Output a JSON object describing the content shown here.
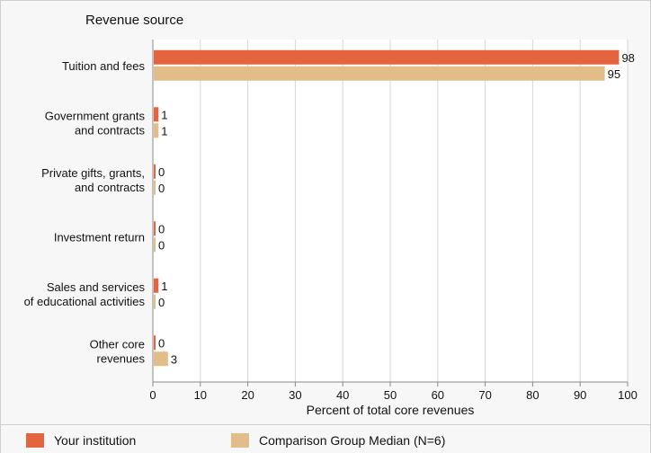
{
  "chart_data": {
    "type": "bar",
    "orientation": "horizontal",
    "title": "Revenue source",
    "xlabel": "Percent of total core revenues",
    "xlim": [
      0,
      100
    ],
    "xticks": [
      0,
      10,
      20,
      30,
      40,
      50,
      60,
      70,
      80,
      90,
      100
    ],
    "categories": [
      [
        "Tuition and fees"
      ],
      [
        "Government grants",
        "and contracts"
      ],
      [
        "Private gifts, grants,",
        "and contracts"
      ],
      [
        "Investment return"
      ],
      [
        "Sales and services",
        "of educational activities"
      ],
      [
        "Other core",
        "revenues"
      ]
    ],
    "series": [
      {
        "name": "Your institution",
        "color": "#e4643f",
        "values": [
          98,
          1,
          0,
          0,
          1,
          0
        ]
      },
      {
        "name": "Comparison Group Median (N=6)",
        "color": "#e2bd8a",
        "values": [
          95,
          1,
          0,
          0,
          0,
          3
        ]
      }
    ],
    "grid": true,
    "legend_position": "bottom"
  }
}
